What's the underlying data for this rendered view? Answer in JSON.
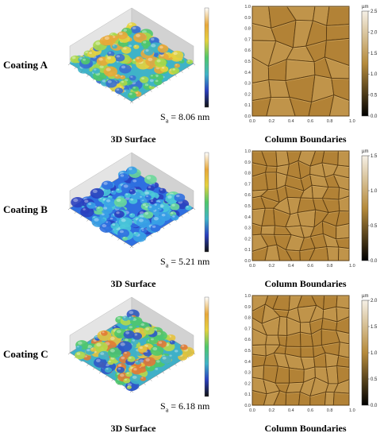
{
  "panels": [
    {
      "label": "Coating A",
      "sa_prefix": "S",
      "sa_sub": "a",
      "sa_value": " = 8.06 nm",
      "left_caption": "3D Surface",
      "right_caption": "Column Boundaries",
      "afm_x_ticks": [
        "0.0",
        "0.2",
        "0.4",
        "0.6",
        "0.8",
        "1.0 µm"
      ],
      "afm_y_ticks": [
        "1.0",
        "0.9",
        "0.8",
        "0.7",
        "0.6",
        "0.5",
        "0.4",
        "0.3",
        "0.2",
        "0.1",
        "0.0"
      ],
      "colorbar_unit": "µm",
      "colorbar_ticks": [
        "2.5",
        "2.0",
        "1.5",
        "1.0",
        "0.5",
        "0.0"
      ],
      "palette": "yellow-green"
    },
    {
      "label": "Coating B",
      "sa_prefix": "S",
      "sa_sub": "a",
      "sa_value": " = 5.21 nm",
      "left_caption": "3D Surface",
      "right_caption": "Column Boundaries",
      "afm_x_ticks": [
        "0.0",
        "0.2",
        "0.4",
        "0.6",
        "0.8",
        "1.0 µm"
      ],
      "afm_y_ticks": [
        "1.0",
        "0.9",
        "0.8",
        "0.7",
        "0.6",
        "0.5",
        "0.4",
        "0.3",
        "0.2",
        "0.1",
        "0.0"
      ],
      "colorbar_unit": "µm",
      "colorbar_ticks": [
        "1.5",
        "1.0",
        "0.5",
        "0.0"
      ],
      "palette": "blue"
    },
    {
      "label": "Coating C",
      "sa_prefix": "S",
      "sa_sub": "a",
      "sa_value": " = 6.18 nm",
      "left_caption": "3D Surface",
      "right_caption": "Column Boundaries",
      "afm_x_ticks": [
        "0.0",
        "0.2",
        "0.4",
        "0.6",
        "0.8",
        "1.0 µm"
      ],
      "afm_y_ticks": [
        "1.0",
        "0.9",
        "0.8",
        "0.7",
        "0.6",
        "0.5",
        "0.4",
        "0.3",
        "0.2",
        "0.1",
        "0.0"
      ],
      "colorbar_unit": "µm",
      "colorbar_ticks": [
        "2.0",
        "1.5",
        "1.0",
        "0.5",
        "0.0"
      ],
      "palette": "mixed"
    }
  ],
  "colors": {
    "afm_base": "#b98c3c",
    "afm_boundary": "#5a3c12",
    "afm_highlight": "#e6c27c",
    "colorbar_top": "#f5f0e6",
    "colorbar_mid": "#b58a3a",
    "colorbar_bottom": "#000000"
  }
}
